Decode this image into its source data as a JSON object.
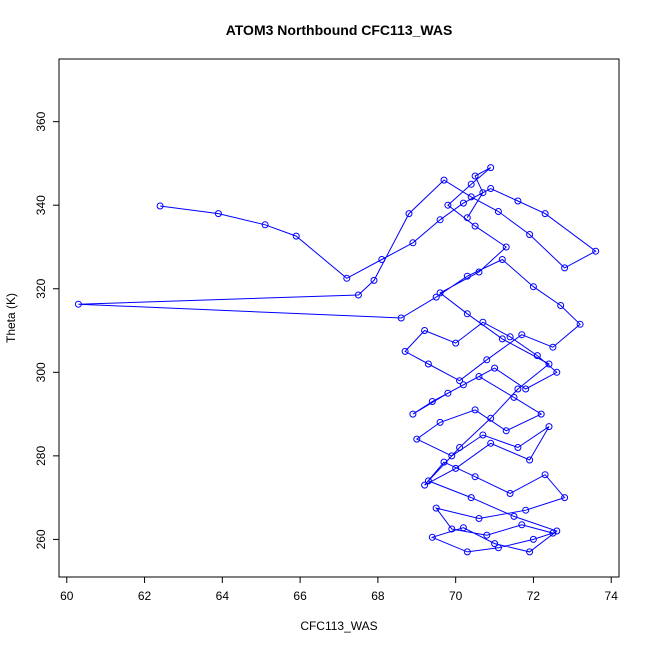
{
  "chart_data": {
    "type": "line",
    "title": "ATOM3 Northbound CFC113_WAS",
    "xlabel": "CFC113_WAS",
    "ylabel": "Theta (K)",
    "xlim": [
      59.8,
      74.2
    ],
    "ylim": [
      251,
      375
    ],
    "xticks": [
      60,
      62,
      64,
      66,
      68,
      70,
      72,
      74
    ],
    "yticks": [
      260,
      280,
      300,
      320,
      340,
      360
    ],
    "grid": false,
    "legend": "none",
    "markers": "open-circle",
    "series_color": "#0000ff",
    "series": [
      {
        "x": [
          62.4,
          63.9,
          65.1,
          65.9,
          67.2,
          68.1,
          68.9,
          69.6,
          70.2,
          70.9,
          71.6,
          72.3,
          73.6,
          72.8,
          71.9,
          71.1,
          70.4,
          69.7,
          68.8,
          67.9,
          67.5,
          60.3,
          68.6,
          69.5,
          70.3,
          71.2,
          72.0,
          72.7,
          73.2,
          72.5,
          71.7,
          70.8,
          70.1,
          69.3,
          68.7,
          69.2,
          70.0,
          70.7,
          71.4,
          72.1,
          72.6,
          71.8,
          71.0,
          70.2,
          69.4,
          68.9,
          69.8,
          70.6,
          71.5,
          72.2,
          71.3,
          70.5,
          69.6,
          69.0,
          69.9,
          70.7,
          71.6,
          72.4,
          71.9,
          70.9,
          70.0,
          69.2,
          69.7,
          70.5,
          71.4,
          72.3,
          72.8,
          71.8,
          70.6,
          69.5,
          69.9,
          70.8,
          71.7,
          72.5,
          72.0,
          71.1,
          70.3,
          69.4,
          70.2,
          71.0,
          71.9,
          72.6,
          71.5,
          70.4,
          69.3,
          70.1,
          70.9,
          71.6,
          72.4,
          71.2,
          70.3,
          69.6,
          70.6,
          71.3,
          70.5,
          69.8,
          70.4,
          70.9,
          70.5,
          70.7,
          70.3
        ],
        "y": [
          339.8,
          338.0,
          335.3,
          332.6,
          322.5,
          327.0,
          331.0,
          336.5,
          340.5,
          344.0,
          341.0,
          338.0,
          329.0,
          325.0,
          333.0,
          338.5,
          342.0,
          346.0,
          338.0,
          322.0,
          318.5,
          316.3,
          313.0,
          318.0,
          323.0,
          327.0,
          320.5,
          316.0,
          311.5,
          306.0,
          309.0,
          303.0,
          298.0,
          302.0,
          305.0,
          310.0,
          307.0,
          312.0,
          308.5,
          304.0,
          300.0,
          296.0,
          301.0,
          297.0,
          293.0,
          290.0,
          295.0,
          299.0,
          294.0,
          290.0,
          286.0,
          291.0,
          288.0,
          284.0,
          280.0,
          285.0,
          282.0,
          287.0,
          279.0,
          283.0,
          277.0,
          273.0,
          278.5,
          275.0,
          271.0,
          275.5,
          270.0,
          267.0,
          265.0,
          267.5,
          262.5,
          261.0,
          263.5,
          261.5,
          260.0,
          258.0,
          257.0,
          260.5,
          262.8,
          259.0,
          257.0,
          262.0,
          265.5,
          270.0,
          274.0,
          282.0,
          289.0,
          296.0,
          302.0,
          308.0,
          314.0,
          319.0,
          324.0,
          330.0,
          335.0,
          340.0,
          345.0,
          349.0,
          347.0,
          343.0,
          337.0
        ]
      }
    ]
  }
}
